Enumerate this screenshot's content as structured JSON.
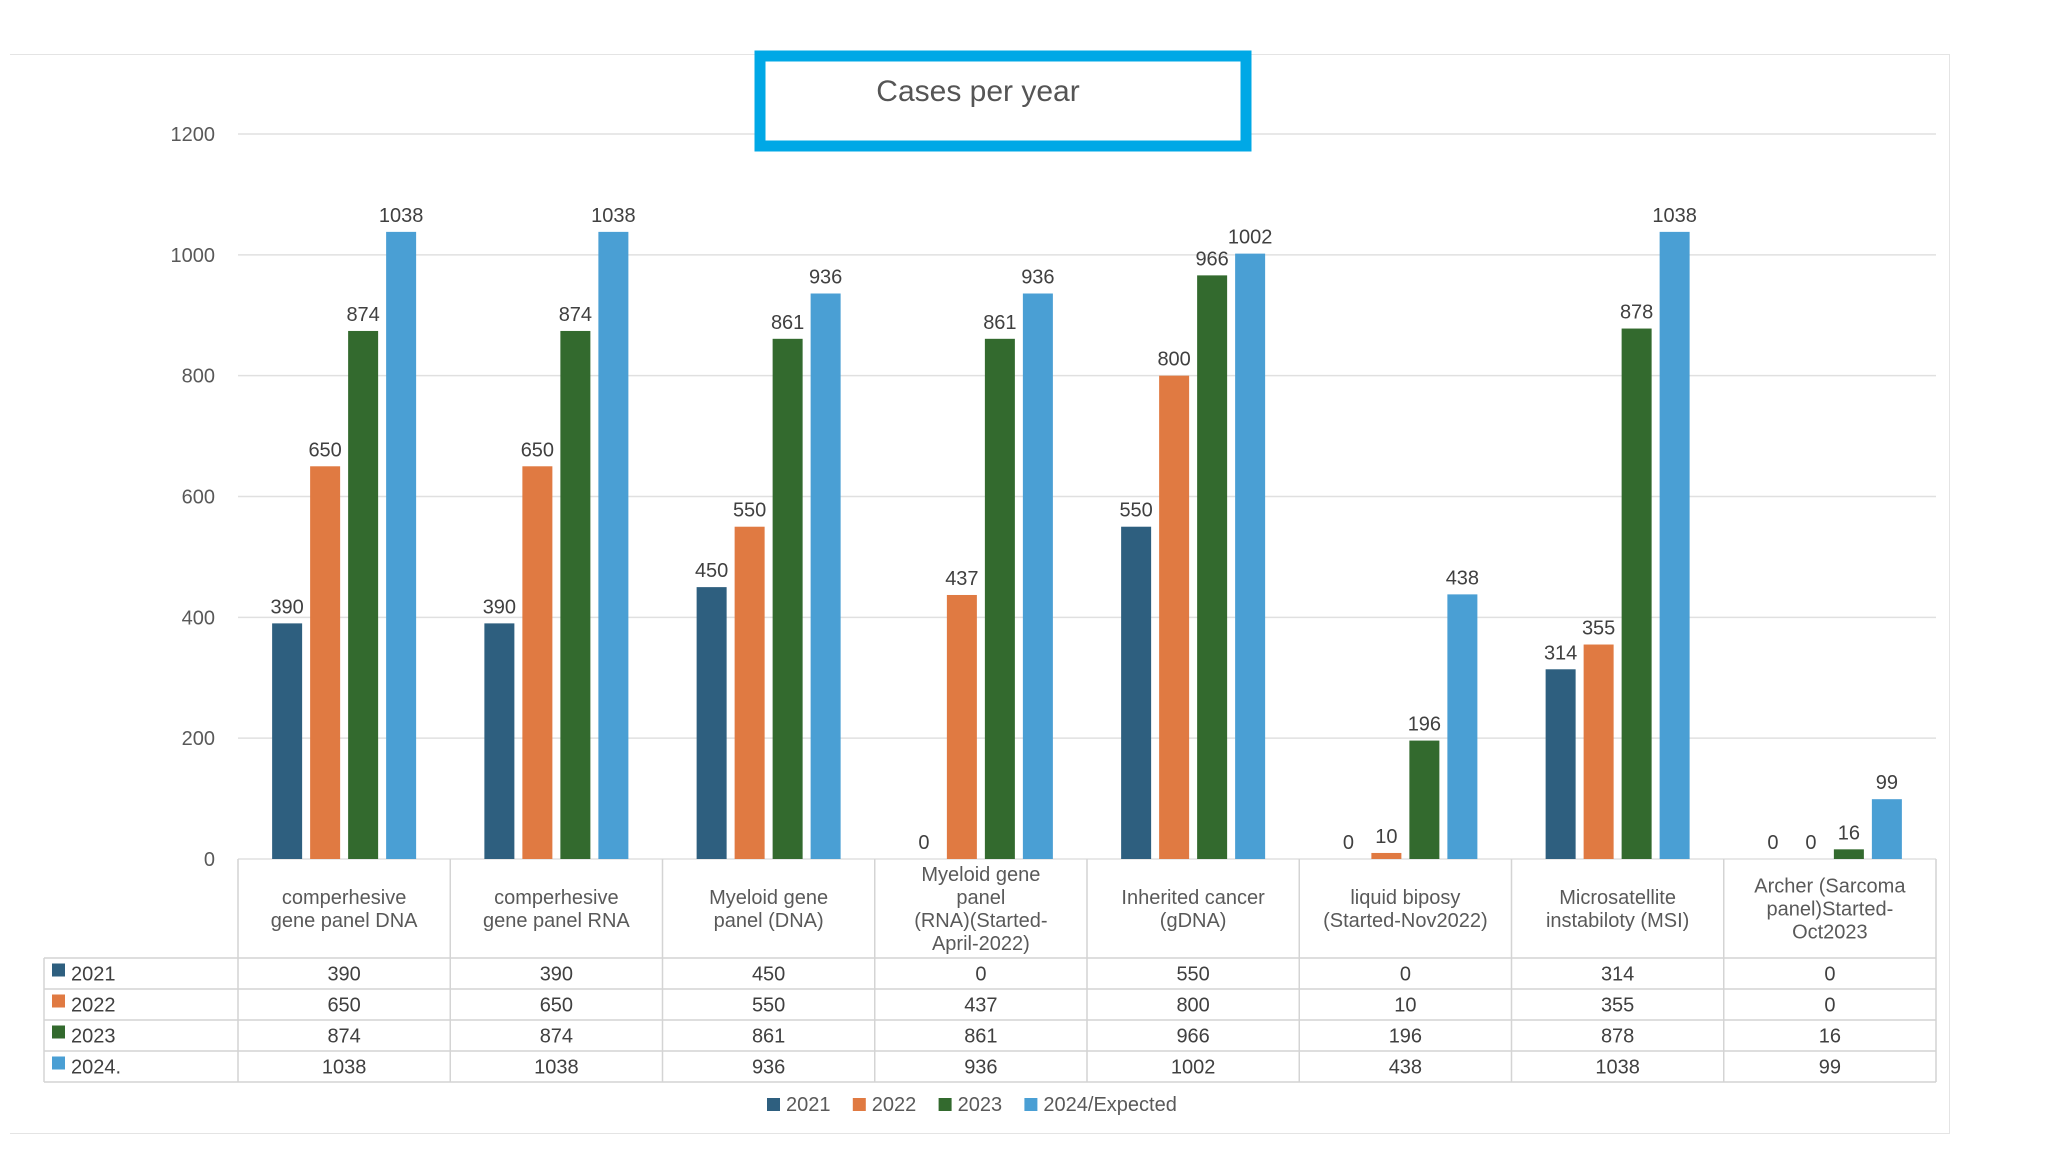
{
  "chart_data": {
    "type": "bar",
    "title": "Cases per year",
    "xlabel": "",
    "ylabel": "",
    "ylim": [
      0,
      1200
    ],
    "yticks": [
      0,
      200,
      400,
      600,
      800,
      1000,
      1200
    ],
    "grid": true,
    "legend_position": "bottom",
    "categories": [
      [
        "comperhesive",
        "gene panel DNA"
      ],
      [
        "comperhesive",
        "gene panel  RNA"
      ],
      [
        "Myeloid gene",
        "panel (DNA)"
      ],
      [
        "Myeloid gene",
        "panel",
        "(RNA)(Started-",
        "April-2022)"
      ],
      [
        "Inherited cancer",
        "(gDNA)"
      ],
      [
        "liquid biposy",
        "(Started-Nov2022)"
      ],
      [
        "Microsatellite",
        "instabiloty (MSI)"
      ],
      [
        "Archer (Sarcoma",
        "panel)Started-",
        "Oct2023"
      ]
    ],
    "series": [
      {
        "name": "2021",
        "table_label": "2021",
        "legend_label": "2021",
        "color": "#2e5f7f",
        "values": [
          390,
          390,
          450,
          0,
          550,
          0,
          314,
          0
        ]
      },
      {
        "name": "2022",
        "table_label": "2022",
        "legend_label": "2022",
        "color": "#e07a42",
        "values": [
          650,
          650,
          550,
          437,
          800,
          10,
          355,
          0
        ]
      },
      {
        "name": "2023",
        "table_label": "2023",
        "legend_label": "2023",
        "color": "#336a2e",
        "values": [
          874,
          874,
          861,
          861,
          966,
          196,
          878,
          16
        ]
      },
      {
        "name": "2024/Expected",
        "table_label": "2024.",
        "legend_label": "2024/Expected",
        "color": "#4a9fd4",
        "values": [
          1038,
          1038,
          936,
          936,
          1002,
          438,
          1038,
          99
        ]
      }
    ],
    "title_box_color": "#00a8e6",
    "gridline_color": "#e0e0e0",
    "table_border_color": "#d4d4d4"
  }
}
